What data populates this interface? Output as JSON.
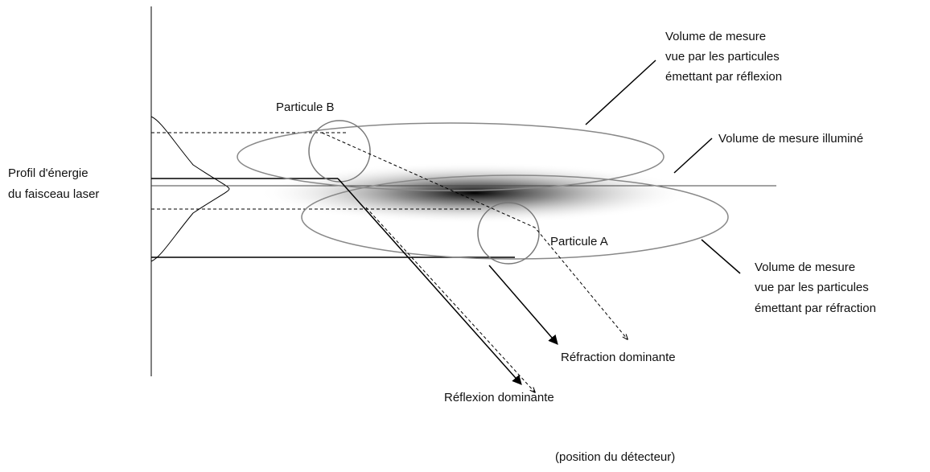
{
  "labels": {
    "reflection_volume": [
      "Volume de mesure",
      "vue par les particules",
      "émettant par réflexion"
    ],
    "particle_b": "Particule B",
    "illuminated_volume": "Volume de mesure illuminé",
    "energy_profile": [
      "Profil d'énergie",
      "du faisceau laser"
    ],
    "particle_a": "Particule A",
    "refraction_volume": [
      "Volume de mesure",
      "vue par les particules",
      "émettant par réfraction"
    ],
    "refraction_dominant": "Réfraction dominante",
    "reflection_dominant": "Réflexion dominante",
    "detector_position": "(position du détecteur)"
  }
}
